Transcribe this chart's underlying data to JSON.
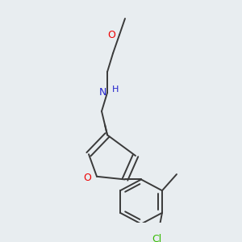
{
  "background_color": "#e8edf0",
  "bond_color": "#3a3a3a",
  "atom_colors": {
    "O": "#ee0000",
    "N": "#2222cc",
    "Cl": "#33bb00",
    "C": "#3a3a3a"
  },
  "figsize": [
    3.0,
    3.0
  ],
  "dpi": 100,
  "scale": 1.0
}
